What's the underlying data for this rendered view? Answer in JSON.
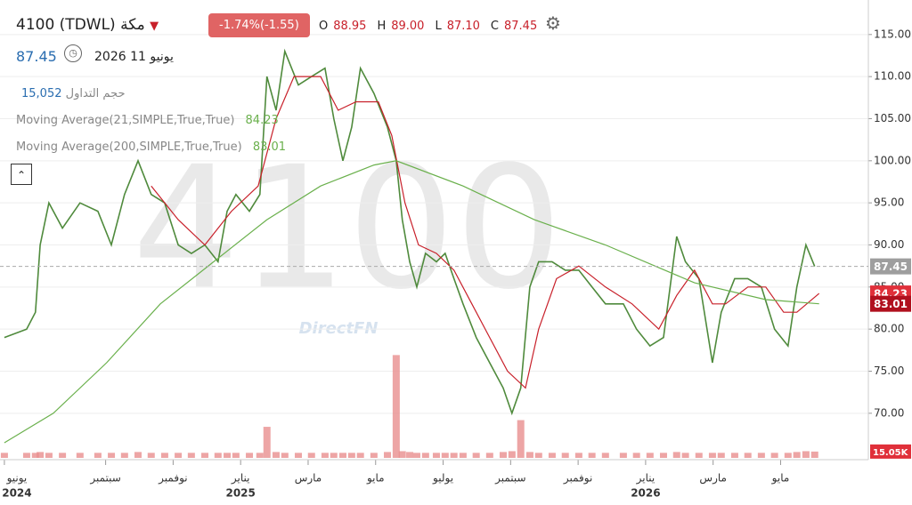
{
  "header": {
    "symbol": "4100",
    "exchange": "(TDWL)",
    "name": "مكة",
    "change": "-1.74%(-1.55)",
    "ohlc": [
      {
        "label": "O",
        "value": "88.95"
      },
      {
        "label": "H",
        "value": "89.00"
      },
      {
        "label": "L",
        "value": "87.10"
      },
      {
        "label": "C",
        "value": "87.45"
      }
    ],
    "date": "يونيو 11 2026",
    "volume_label": "حجم التداول",
    "volume_value": "15,052",
    "watermark": "DirectFN"
  },
  "chart_data": {
    "type": "line",
    "xlim": [
      -0.13,
      25.6
    ],
    "ylim": [
      64.7,
      119.1
    ],
    "yticks": [
      70,
      75,
      80,
      85,
      90,
      95,
      100,
      105,
      110,
      115
    ],
    "yticks_format": [
      {
        "value": 70,
        "label": "70.00"
      },
      {
        "value": 75,
        "label": "75.00"
      },
      {
        "value": 80,
        "label": "80.00"
      },
      {
        "value": 85,
        "label": "85.00"
      },
      {
        "value": 90,
        "label": "90.00"
      },
      {
        "value": 95,
        "label": "95.00"
      },
      {
        "value": 100,
        "label": "100.00"
      },
      {
        "value": 105,
        "label": "105.00"
      },
      {
        "value": 110,
        "label": "110.00"
      },
      {
        "value": 115,
        "label": "115.00"
      }
    ],
    "xticks": [
      {
        "value": 0,
        "label": "يونيو"
      },
      {
        "value": 3,
        "label": "سبتمبر"
      },
      {
        "value": 5,
        "label": "نوفمبر"
      },
      {
        "value": 7,
        "label": "يناير"
      },
      {
        "value": 9,
        "label": "مارس"
      },
      {
        "value": 11,
        "label": "مايو"
      },
      {
        "value": 13,
        "label": "يوليو"
      },
      {
        "value": 15,
        "label": "سبتمبر"
      },
      {
        "value": 17,
        "label": "نوفمبر"
      },
      {
        "value": 19,
        "label": "يناير"
      },
      {
        "value": 21,
        "label": "مارس"
      },
      {
        "value": 23,
        "label": "مايو"
      }
    ],
    "x_year_labels": [
      {
        "value": 0,
        "label": "2024"
      },
      {
        "value": 7,
        "label": "2025"
      },
      {
        "value": 19,
        "label": "2026"
      }
    ],
    "grid": true,
    "series": [
      {
        "color": "#4f8a3c",
        "x": [
          0,
          0.66,
          0.92,
          1.06,
          1.32,
          1.72,
          2.24,
          2.77,
          3.17,
          3.56,
          3.96,
          4.35,
          4.75,
          5.15,
          5.54,
          5.94,
          6.33,
          6.6,
          6.86,
          7.26,
          7.57,
          7.78,
          8.05,
          8.31,
          8.71,
          9.1,
          9.5,
          9.76,
          10.03,
          10.29,
          10.55,
          10.95,
          11.35,
          11.61,
          11.79,
          12.01,
          12.22,
          12.48,
          12.8,
          13.06,
          13.32,
          13.59,
          13.98,
          14.38,
          14.78,
          15.04,
          15.3,
          15.57,
          15.83,
          16.23,
          16.62,
          17.02,
          17.41,
          17.81,
          18.34,
          18.73,
          19.13,
          19.53,
          19.92,
          20.18,
          20.58,
          20.98,
          21.24,
          21.64,
          22.03,
          22.43,
          22.82,
          23.22,
          23.48,
          23.75,
          24.01
        ],
        "values": [
          79,
          80,
          82,
          90,
          95,
          92,
          95,
          94,
          90,
          96,
          100,
          96,
          95,
          90,
          89,
          90,
          88,
          94,
          96,
          94,
          96,
          110,
          106,
          113,
          109,
          110,
          111,
          105,
          100,
          104,
          111,
          108,
          104,
          100,
          93,
          88,
          85,
          89,
          88,
          89,
          86,
          83,
          79,
          76,
          73,
          70,
          73,
          85,
          88,
          88,
          87,
          87,
          85,
          83,
          83,
          80,
          78,
          79,
          91,
          88,
          86,
          76,
          82,
          86,
          86,
          85,
          80,
          78,
          85,
          90,
          87.45
        ]
      },
      {
        "name": "Moving Average(21,SIMPLE,True,True)",
        "color": "#c8202a",
        "x": [
          4.35,
          5.15,
          5.94,
          6.73,
          7.52,
          8.05,
          8.58,
          9.37,
          9.89,
          10.42,
          11.08,
          11.48,
          11.87,
          12.27,
          12.8,
          13.32,
          13.85,
          14.38,
          14.91,
          15.44,
          15.83,
          16.36,
          17.02,
          17.81,
          18.6,
          19.39,
          19.92,
          20.45,
          20.98,
          21.37,
          22.03,
          22.56,
          23.09,
          23.48,
          24.14
        ],
        "values": [
          97,
          93,
          90,
          94,
          97,
          105,
          110,
          110,
          106,
          107,
          107,
          103,
          95,
          90,
          89,
          87,
          83,
          79,
          75,
          73,
          80,
          86,
          87.5,
          85,
          83,
          80,
          84,
          87,
          83,
          83,
          85,
          85,
          82,
          82,
          84.23
        ]
      },
      {
        "name": "Moving Average(200,SIMPLE,True,True)",
        "color": "#6ab04c",
        "x": [
          0,
          1.45,
          3.03,
          4.62,
          6.2,
          7.78,
          9.37,
          10.95,
          11.61,
          13.59,
          15.7,
          17.81,
          20.45,
          22.56,
          24.14
        ],
        "values": [
          66.5,
          70,
          76,
          83,
          88,
          93,
          97,
          99.5,
          100,
          97,
          93,
          90,
          85.5,
          83.5,
          83.01
        ]
      }
    ],
    "volume": {
      "color": "#e88e8e",
      "ylim": [
        0,
        250
      ],
      "ticks": [
        {
          "value": 15.05,
          "label": "15.05K"
        }
      ],
      "values": [
        12,
        12,
        12,
        14,
        12,
        12,
        12,
        12,
        12,
        12,
        14,
        12,
        12,
        12,
        12,
        12,
        12,
        12,
        12,
        12,
        12,
        74,
        14,
        12,
        12,
        12,
        12,
        12,
        12,
        12,
        12,
        12,
        14,
        245,
        16,
        14,
        12,
        12,
        12,
        12,
        12,
        12,
        12,
        12,
        14,
        16,
        90,
        14,
        12,
        12,
        12,
        12,
        12,
        12,
        12,
        12,
        12,
        12,
        14,
        12,
        12,
        12,
        12,
        12,
        12,
        12,
        12,
        12,
        14,
        16,
        15.05
      ]
    }
  }
}
